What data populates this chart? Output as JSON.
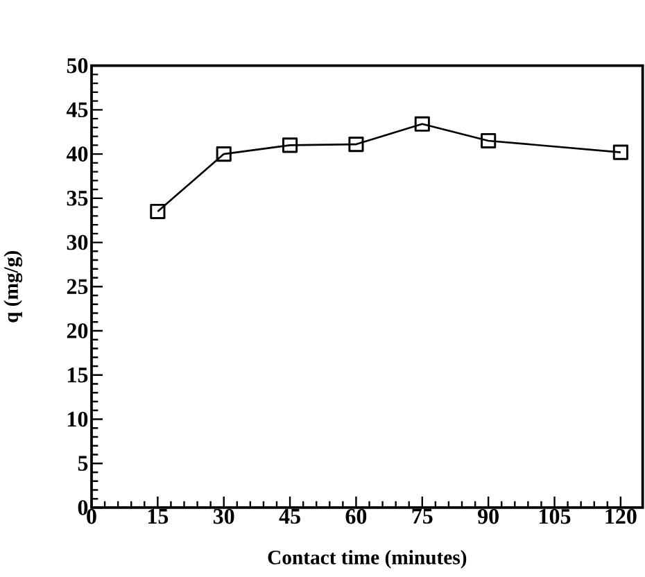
{
  "chart_data": {
    "type": "line",
    "xlabel": "Contact time (minutes)",
    "ylabel": "q (mg/g)",
    "x": [
      15,
      30,
      45,
      60,
      75,
      90,
      120
    ],
    "series": [
      {
        "color": "#000000",
        "values": [
          33.5,
          40.0,
          41.0,
          41.1,
          43.4,
          41.5,
          40.2
        ]
      }
    ],
    "xlim": [
      0,
      125
    ],
    "ylim": [
      0,
      50
    ],
    "xticks": [
      0,
      15,
      30,
      45,
      60,
      75,
      90,
      105,
      120
    ],
    "yticks": [
      0,
      5,
      10,
      15,
      20,
      25,
      30,
      35,
      40,
      45,
      50
    ],
    "marker": "square",
    "line_style": "solid"
  }
}
